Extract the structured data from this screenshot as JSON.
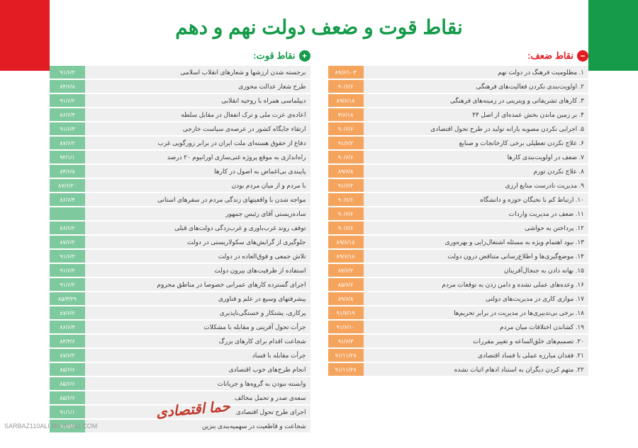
{
  "title": "نقاط قوت و ضعف دولت نهم و دهم",
  "strengths": {
    "header": "نقاط قوت:",
    "icon": "+",
    "date_color": "#7fc99e",
    "items": [
      {
        "text": "برجسته شدن ارزشها و شعارهای انقلاب اسلامی",
        "date": "۹۱/۶/۲"
      },
      {
        "text": "طرح شعار عدالت محوری",
        "date": "۸۴/۶/۸"
      },
      {
        "text": "دیپلماسی همراه با روحیه انقلابی",
        "date": "۹۱/۶/۲"
      },
      {
        "text": "اعاده‌ی عزت ملی و ترک انفعال در مقابل سلطه",
        "date": "۸۶/۶/۴"
      },
      {
        "text": "ارتقاء جایگاه کشور در عرصه‌ی سیاست خارجی",
        "date": "۹۱/۶/۳"
      },
      {
        "text": "دفاع از حقوق هسته‌ای ملت ایران در برابر زورگویی غرب",
        "date": "۸۷/۶/۲"
      },
      {
        "text": "راه‌اندازی به موقع پروژه غنی‌سازی اورانیوم ۲۰ درصد",
        "date": "۹۲/۱/۱"
      },
      {
        "text": "پایبندی بی‌اغماض به اصول در کارها",
        "date": "۸۴/۶/۸"
      },
      {
        "text": "با مردم و از میان مردم بودن",
        "date": "۸۷/۶/۲۰"
      },
      {
        "text": "مواجه شدن با واقعیتهای زندگی مردم در سفرهای استانی",
        "date": "۸۶/۶/۴"
      },
      {
        "text": "ساده‌زیستی آقای رئیس جمهور",
        "date": ""
      },
      {
        "text": "توقف روند غرب‌باوری و غرب‌زدگی دولت‌های قبلی",
        "date": "۸۶/۶/۲"
      },
      {
        "text": "جلوگیری از گرایش‌های سکولاریستی در دولت",
        "date": "۸۷/۶/۲"
      },
      {
        "text": "تلاش جمعی و فوق‌العاده در دولت",
        "date": "۹۱/۶/۲"
      },
      {
        "text": "استفاده از ظرفیت‌های بیرون دولت",
        "date": "۹۱/۶/۲"
      },
      {
        "text": "اجرای گسترده کارهای عمرانی خصوصا در مناطق محروم",
        "date": "۹۱/۶/۲"
      },
      {
        "text": "پیشرفتهای وسیع در علم و فناوری",
        "date": "۸۵/۳/۲۹"
      },
      {
        "text": "پرکاری، پشتکار و خستگی‌ناپذیری",
        "date": "۸۷/۶/۲"
      },
      {
        "text": "جرأت تحول آفرینی و مقابله با مشکلات",
        "date": "۸۶/۶/۴"
      },
      {
        "text": "شجاعت اقدام برای کارهای بزرگ",
        "date": "۸۴/۴/۶"
      },
      {
        "text": "جرأت مقابله با فساد",
        "date": "۸۷/۶/۲"
      },
      {
        "text": "انجام طرح‌های خوب اقتصادی",
        "date": "۸۵/۶/۶"
      },
      {
        "text": "وابسته نبودن به گروه‌ها و جریانات",
        "date": "۸۵/۶/۶"
      },
      {
        "text": "سعه‌ی صدر و تحمل مخالف",
        "date": "۸۵/۶/۶"
      },
      {
        "text": "اجرای طرح تحول اقتصادی",
        "date": "۹۱/۱/۱"
      },
      {
        "text": "شجاعت و قاطعیت در سهمیه‌بندی بنزین",
        "date": "۹۱/۵/۳"
      }
    ]
  },
  "weaknesses": {
    "header": "نقاط ضعف:",
    "icon": "−",
    "date_color": "#f5a45e",
    "items": [
      {
        "text": "۱. مظلومیت فرهنگ در دولت نهم",
        "date": "۸۹/۶/۱۰۳"
      },
      {
        "text": "۲. اولویت‌بندی نکردن فعالیت‌های فرهنگی",
        "date": "۹۰/۶/۶"
      },
      {
        "text": "۳. کارهای تشریفاتی و ویترینی در زمینه‌های فرهنگی",
        "date": "۸۹/۶/۱۸"
      },
      {
        "text": "۴. بر زمین ماندن بخش عمده‌ای از اصل ۴۴",
        "date": "۴/۶/۱۸"
      },
      {
        "text": "۵. اجرایی نکردن مصوبه یارانه تولید در طرح تحول اقتصادی",
        "date": "۹۰/۶/۶"
      },
      {
        "text": "۶. علاج نکردن تعطیلی برخی کارخانجات و صنایع",
        "date": "۹۱/۶/۲"
      },
      {
        "text": "۷. ضعف در اولویت‌بندی کارها",
        "date": "۹۰/۶/۶"
      },
      {
        "text": "۸. علاج نکردن تورم",
        "date": "۸۹/۶/۸"
      },
      {
        "text": "۹. مدیریت نادرست منابع ارزی",
        "date": "۹۱/۶/۲"
      },
      {
        "text": "۱۰. ارتباط کم با نخبگان حوزه و دانشگاه",
        "date": "۹۰/۶/۶"
      },
      {
        "text": "۱۱. ضعف در مدیریت واردات",
        "date": "۹۰/۶/۶"
      },
      {
        "text": "۱۲. پرداختن به حواشی",
        "date": "۹۰/۶/۶"
      },
      {
        "text": "۱۳. نبود اهتمام ویژه به مسئله اشتغال‌زایی و بهره‌وری",
        "date": "۸۹/۶/۱۸"
      },
      {
        "text": "۱۴. موضع‌گیری‌ها و اطلاع‌رسانی متناقض درون دولت",
        "date": "۸۹/۶/۱۸"
      },
      {
        "text": "۱۵. بهانه دادن به جنجال‌آفرینان",
        "date": "۸۷/۶/۲"
      },
      {
        "text": "۱۶. وعده‌های عملی نشده و دامن زدن به توقعات مردم",
        "date": "۸۵/۶/۶"
      },
      {
        "text": "۱۷. موازی کاری در مدیریت‌های دولتی",
        "date": "۸۹/۶/۸"
      },
      {
        "text": "۱۸. برخی بی‌تدبیری‌ها در مدیریت در برابر تحریم‌ها",
        "date": "۹۱/۷/۱۹"
      },
      {
        "text": "۱۹. کشاندن اختلافات میان مردم",
        "date": "۹۱/۶/۱۰"
      },
      {
        "text": "۲۰. تصمیم‌های خلق‌الساعه و تغییر مقررات",
        "date": "۹۱/۶/۳"
      },
      {
        "text": "۲۱. فقدان مبارزه عملی با فساد اقتصادی",
        "date": "۹۱/۱۱/۲۸"
      },
      {
        "text": "۲۲. متهم کردن دیگران به استناد ادهام اثبات نشده",
        "date": "۹۱/۱۱/۲۸"
      }
    ]
  },
  "logo_text": "حما اقتصادی",
  "watermark": "SARBAZ110ALI.MIYANALI.COM"
}
